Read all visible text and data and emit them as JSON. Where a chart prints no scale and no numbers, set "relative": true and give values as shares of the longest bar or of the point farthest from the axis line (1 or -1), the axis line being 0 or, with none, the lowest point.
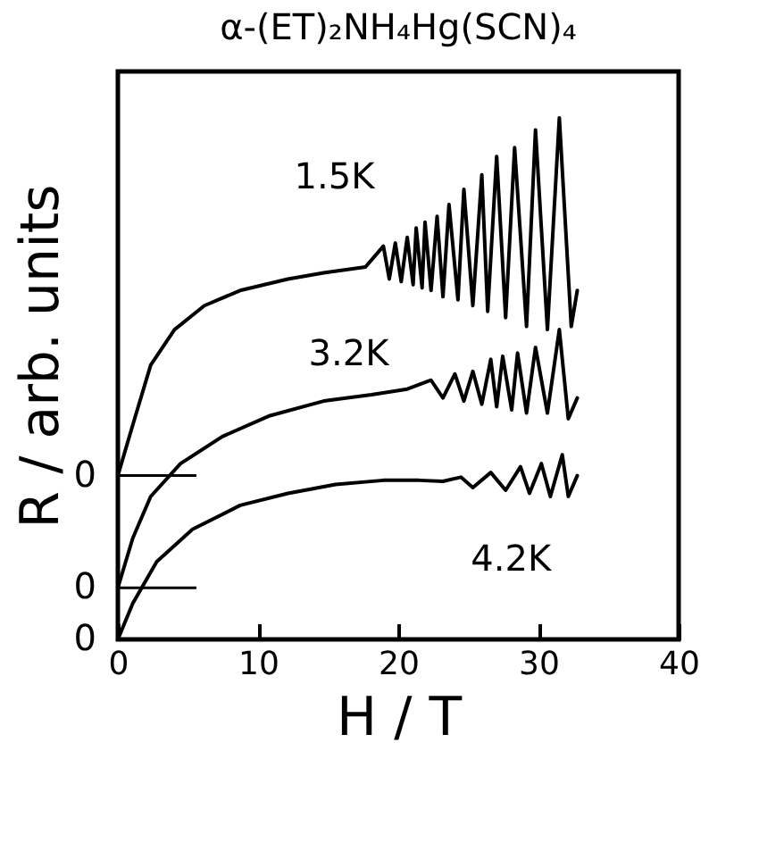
{
  "chart_data": {
    "type": "line",
    "title": "α-(ET)₂NH₄Hg(SCN)₄",
    "xlabel": "H / T",
    "ylabel": "R / arb. units",
    "relative": true,
    "xlim": [
      0,
      40
    ],
    "xticks": [
      0,
      10,
      20,
      30,
      40
    ],
    "marker": "none",
    "line_style": "solid",
    "series": [
      {
        "name": "1.5K",
        "color": "#000000",
        "x": [
          0,
          1.06,
          2.34,
          4.04,
          6.17,
          8.72,
          12.13,
          14.68,
          17.66,
          18.94,
          19.36,
          19.79,
          20.21,
          20.64,
          21.06,
          21.28,
          21.7,
          21.91,
          22.34,
          22.77,
          23.19,
          23.62,
          24.26,
          24.68,
          25.32,
          25.96,
          26.38,
          27.02,
          27.66,
          28.3,
          29.15,
          29.79,
          30.64,
          31.49,
          32.34,
          32.77
        ],
        "values": [
          0.314,
          0.411,
          0.526,
          0.594,
          0.64,
          0.669,
          0.691,
          0.703,
          0.714,
          0.754,
          0.691,
          0.76,
          0.686,
          0.771,
          0.68,
          0.789,
          0.674,
          0.8,
          0.669,
          0.811,
          0.657,
          0.834,
          0.651,
          0.863,
          0.64,
          0.891,
          0.629,
          0.926,
          0.617,
          0.943,
          0.6,
          0.977,
          0.594,
          1.0,
          0.6,
          0.669
        ]
      },
      {
        "name": "3.2K",
        "color": "#000000",
        "x": [
          0,
          1.06,
          2.34,
          4.47,
          7.45,
          10.85,
          14.68,
          18.09,
          20.64,
          22.34,
          23.19,
          24.04,
          24.68,
          25.32,
          25.96,
          26.6,
          27.02,
          27.45,
          28.09,
          28.51,
          29.15,
          29.79,
          30.64,
          31.49,
          32.13,
          32.77
        ],
        "values": [
          0.099,
          0.194,
          0.274,
          0.337,
          0.389,
          0.429,
          0.457,
          0.469,
          0.48,
          0.497,
          0.463,
          0.509,
          0.457,
          0.514,
          0.451,
          0.537,
          0.446,
          0.543,
          0.44,
          0.549,
          0.434,
          0.56,
          0.434,
          0.594,
          0.423,
          0.463
        ]
      },
      {
        "name": "4.2K",
        "color": "#000000",
        "x": [
          0,
          1.06,
          2.77,
          5.32,
          8.72,
          12.13,
          15.53,
          18.94,
          21.49,
          23.19,
          24.47,
          25.32,
          26.6,
          27.66,
          28.72,
          29.36,
          30.21,
          30.85,
          31.7,
          32.13,
          32.77
        ],
        "values": [
          0,
          0.069,
          0.149,
          0.211,
          0.257,
          0.28,
          0.297,
          0.305,
          0.305,
          0.303,
          0.311,
          0.291,
          0.32,
          0.286,
          0.331,
          0.28,
          0.337,
          0.274,
          0.354,
          0.274,
          0.314
        ]
      }
    ],
    "ref_lines": [
      {
        "axis": "y",
        "value": 0.314,
        "label": "0"
      },
      {
        "axis": "y",
        "value": 0.099,
        "label": "0"
      }
    ],
    "annotations": [
      {
        "text": "0",
        "x": 0,
        "y": 0
      }
    ]
  }
}
